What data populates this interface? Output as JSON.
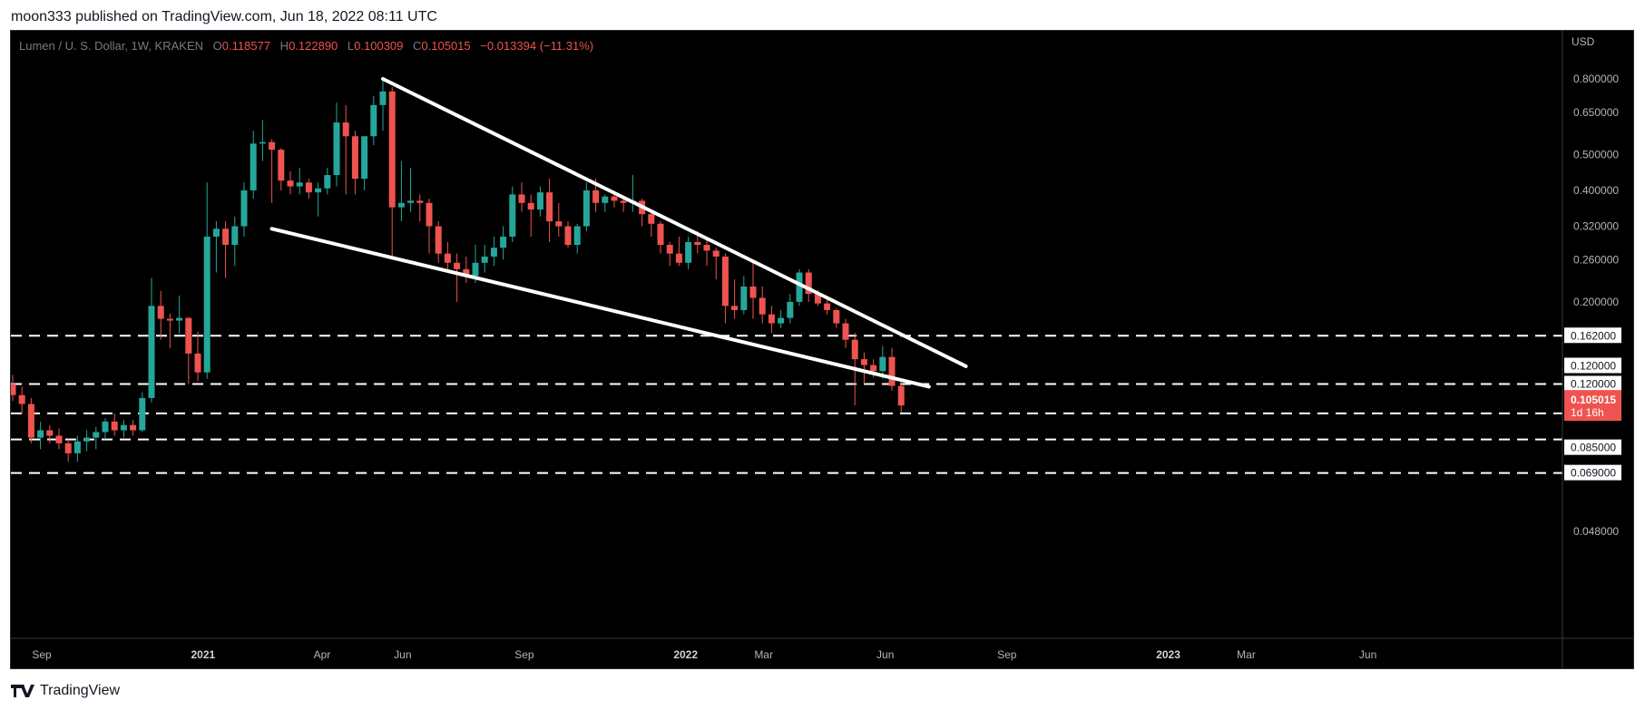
{
  "header": {
    "publish_line": "moon333 published on TradingView.com, Jun 18, 2022 08:11 UTC"
  },
  "footer": {
    "brand": "TradingView",
    "logo_icon": "tradingview-logo-icon"
  },
  "legend": {
    "symbol": "Lumen / U. S. Dollar, 1W, KRAKEN",
    "o_label": "O",
    "o_value": "0.118577",
    "h_label": "H",
    "h_value": "0.122890",
    "l_label": "L",
    "l_value": "0.100309",
    "c_label": "C",
    "c_value": "0.105015",
    "change": "−0.013394 (−11.31%)"
  },
  "colors": {
    "up": "#26a69a",
    "down": "#ef5350",
    "background": "#000000",
    "axis_text": "#b2b5be",
    "legend_value": "#ef5350",
    "drawing": "#ffffff"
  },
  "chart_data": {
    "type": "candlestick",
    "title": "Lumen / U. S. Dollar, 1W, KRAKEN",
    "y_axis": {
      "unit_label": "USD",
      "scale": "log",
      "ticks": [
        "0.800000",
        "0.650000",
        "0.500000",
        "0.400000",
        "0.320000",
        "0.260000",
        "0.200000",
        "0.048000"
      ]
    },
    "x_axis": {
      "ticks": [
        "Sep",
        "2021",
        "Apr",
        "Jun",
        "Sep",
        "2022",
        "Mar",
        "Jun",
        "Sep",
        "2023",
        "Mar",
        "Jun"
      ]
    },
    "candles": [
      {
        "d": "2020-08-10",
        "o": 0.12,
        "h": 0.127,
        "l": 0.108,
        "c": 0.112
      },
      {
        "d": "2020-08-17",
        "o": 0.112,
        "h": 0.118,
        "l": 0.1,
        "c": 0.106
      },
      {
        "d": "2020-08-24",
        "o": 0.106,
        "h": 0.11,
        "l": 0.083,
        "c": 0.086
      },
      {
        "d": "2020-08-31",
        "o": 0.086,
        "h": 0.095,
        "l": 0.08,
        "c": 0.09
      },
      {
        "d": "2020-09-07",
        "o": 0.09,
        "h": 0.093,
        "l": 0.083,
        "c": 0.087
      },
      {
        "d": "2020-09-14",
        "o": 0.087,
        "h": 0.091,
        "l": 0.08,
        "c": 0.083
      },
      {
        "d": "2020-09-21",
        "o": 0.083,
        "h": 0.085,
        "l": 0.074,
        "c": 0.078
      },
      {
        "d": "2020-09-28",
        "o": 0.078,
        "h": 0.087,
        "l": 0.074,
        "c": 0.084
      },
      {
        "d": "2020-10-05",
        "o": 0.084,
        "h": 0.09,
        "l": 0.079,
        "c": 0.086
      },
      {
        "d": "2020-10-12",
        "o": 0.086,
        "h": 0.092,
        "l": 0.08,
        "c": 0.089
      },
      {
        "d": "2020-10-19",
        "o": 0.089,
        "h": 0.097,
        "l": 0.085,
        "c": 0.095
      },
      {
        "d": "2020-10-26",
        "o": 0.095,
        "h": 0.1,
        "l": 0.087,
        "c": 0.09
      },
      {
        "d": "2020-11-02",
        "o": 0.09,
        "h": 0.096,
        "l": 0.086,
        "c": 0.093
      },
      {
        "d": "2020-11-09",
        "o": 0.093,
        "h": 0.096,
        "l": 0.087,
        "c": 0.09
      },
      {
        "d": "2020-11-16",
        "o": 0.09,
        "h": 0.114,
        "l": 0.089,
        "c": 0.11
      },
      {
        "d": "2020-11-23",
        "o": 0.11,
        "h": 0.232,
        "l": 0.107,
        "c": 0.195
      },
      {
        "d": "2020-11-30",
        "o": 0.195,
        "h": 0.214,
        "l": 0.158,
        "c": 0.18
      },
      {
        "d": "2020-12-07",
        "o": 0.18,
        "h": 0.186,
        "l": 0.15,
        "c": 0.178
      },
      {
        "d": "2020-12-14",
        "o": 0.178,
        "h": 0.208,
        "l": 0.164,
        "c": 0.181
      },
      {
        "d": "2020-12-21",
        "o": 0.181,
        "h": 0.182,
        "l": 0.12,
        "c": 0.145
      },
      {
        "d": "2020-12-28",
        "o": 0.145,
        "h": 0.166,
        "l": 0.122,
        "c": 0.129
      },
      {
        "d": "2021-01-04",
        "o": 0.129,
        "h": 0.42,
        "l": 0.124,
        "c": 0.3
      },
      {
        "d": "2021-01-11",
        "o": 0.3,
        "h": 0.33,
        "l": 0.24,
        "c": 0.315
      },
      {
        "d": "2021-01-18",
        "o": 0.315,
        "h": 0.33,
        "l": 0.232,
        "c": 0.285
      },
      {
        "d": "2021-01-25",
        "o": 0.285,
        "h": 0.34,
        "l": 0.25,
        "c": 0.32
      },
      {
        "d": "2021-02-01",
        "o": 0.32,
        "h": 0.42,
        "l": 0.3,
        "c": 0.4
      },
      {
        "d": "2021-02-08",
        "o": 0.4,
        "h": 0.58,
        "l": 0.38,
        "c": 0.535
      },
      {
        "d": "2021-02-15",
        "o": 0.535,
        "h": 0.62,
        "l": 0.48,
        "c": 0.54
      },
      {
        "d": "2021-02-22",
        "o": 0.54,
        "h": 0.55,
        "l": 0.37,
        "c": 0.515
      },
      {
        "d": "2021-03-01",
        "o": 0.515,
        "h": 0.52,
        "l": 0.4,
        "c": 0.425
      },
      {
        "d": "2021-03-08",
        "o": 0.425,
        "h": 0.45,
        "l": 0.39,
        "c": 0.41
      },
      {
        "d": "2021-03-15",
        "o": 0.41,
        "h": 0.46,
        "l": 0.39,
        "c": 0.42
      },
      {
        "d": "2021-03-22",
        "o": 0.42,
        "h": 0.43,
        "l": 0.38,
        "c": 0.395
      },
      {
        "d": "2021-03-29",
        "o": 0.395,
        "h": 0.42,
        "l": 0.34,
        "c": 0.405
      },
      {
        "d": "2021-04-05",
        "o": 0.405,
        "h": 0.46,
        "l": 0.39,
        "c": 0.44
      },
      {
        "d": "2021-04-12",
        "o": 0.44,
        "h": 0.69,
        "l": 0.41,
        "c": 0.61
      },
      {
        "d": "2021-04-19",
        "o": 0.61,
        "h": 0.68,
        "l": 0.39,
        "c": 0.56
      },
      {
        "d": "2021-04-26",
        "o": 0.56,
        "h": 0.58,
        "l": 0.39,
        "c": 0.43
      },
      {
        "d": "2021-05-03",
        "o": 0.43,
        "h": 0.56,
        "l": 0.4,
        "c": 0.56
      },
      {
        "d": "2021-05-10",
        "o": 0.56,
        "h": 0.72,
        "l": 0.53,
        "c": 0.68
      },
      {
        "d": "2021-05-17",
        "o": 0.68,
        "h": 0.8,
        "l": 0.58,
        "c": 0.74
      },
      {
        "d": "2021-05-24",
        "o": 0.74,
        "h": 0.76,
        "l": 0.265,
        "c": 0.36
      },
      {
        "d": "2021-05-31",
        "o": 0.36,
        "h": 0.48,
        "l": 0.33,
        "c": 0.37
      },
      {
        "d": "2021-06-07",
        "o": 0.37,
        "h": 0.46,
        "l": 0.35,
        "c": 0.375
      },
      {
        "d": "2021-06-14",
        "o": 0.375,
        "h": 0.39,
        "l": 0.33,
        "c": 0.37
      },
      {
        "d": "2021-06-21",
        "o": 0.37,
        "h": 0.38,
        "l": 0.27,
        "c": 0.32
      },
      {
        "d": "2021-06-28",
        "o": 0.32,
        "h": 0.33,
        "l": 0.255,
        "c": 0.27
      },
      {
        "d": "2021-07-05",
        "o": 0.27,
        "h": 0.29,
        "l": 0.24,
        "c": 0.255
      },
      {
        "d": "2021-07-12",
        "o": 0.255,
        "h": 0.27,
        "l": 0.2,
        "c": 0.245
      },
      {
        "d": "2021-07-19",
        "o": 0.245,
        "h": 0.265,
        "l": 0.225,
        "c": 0.235
      },
      {
        "d": "2021-07-26",
        "o": 0.235,
        "h": 0.285,
        "l": 0.225,
        "c": 0.255
      },
      {
        "d": "2021-08-02",
        "o": 0.255,
        "h": 0.285,
        "l": 0.24,
        "c": 0.265
      },
      {
        "d": "2021-08-09",
        "o": 0.265,
        "h": 0.3,
        "l": 0.25,
        "c": 0.28
      },
      {
        "d": "2021-08-16",
        "o": 0.28,
        "h": 0.32,
        "l": 0.26,
        "c": 0.3
      },
      {
        "d": "2021-08-23",
        "o": 0.3,
        "h": 0.41,
        "l": 0.29,
        "c": 0.39
      },
      {
        "d": "2021-08-30",
        "o": 0.39,
        "h": 0.42,
        "l": 0.35,
        "c": 0.37
      },
      {
        "d": "2021-09-06",
        "o": 0.37,
        "h": 0.39,
        "l": 0.3,
        "c": 0.355
      },
      {
        "d": "2021-09-13",
        "o": 0.355,
        "h": 0.41,
        "l": 0.34,
        "c": 0.395
      },
      {
        "d": "2021-09-20",
        "o": 0.395,
        "h": 0.43,
        "l": 0.29,
        "c": 0.33
      },
      {
        "d": "2021-09-27",
        "o": 0.33,
        "h": 0.37,
        "l": 0.3,
        "c": 0.32
      },
      {
        "d": "2021-10-04",
        "o": 0.32,
        "h": 0.33,
        "l": 0.28,
        "c": 0.285
      },
      {
        "d": "2021-10-11",
        "o": 0.285,
        "h": 0.325,
        "l": 0.27,
        "c": 0.32
      },
      {
        "d": "2021-10-18",
        "o": 0.32,
        "h": 0.42,
        "l": 0.31,
        "c": 0.4
      },
      {
        "d": "2021-10-25",
        "o": 0.4,
        "h": 0.43,
        "l": 0.35,
        "c": 0.37
      },
      {
        "d": "2021-11-01",
        "o": 0.37,
        "h": 0.39,
        "l": 0.35,
        "c": 0.385
      },
      {
        "d": "2021-11-08",
        "o": 0.385,
        "h": 0.395,
        "l": 0.36,
        "c": 0.375
      },
      {
        "d": "2021-11-15",
        "o": 0.375,
        "h": 0.38,
        "l": 0.35,
        "c": 0.37
      },
      {
        "d": "2021-11-22",
        "o": 0.37,
        "h": 0.44,
        "l": 0.35,
        "c": 0.375
      },
      {
        "d": "2021-11-29",
        "o": 0.375,
        "h": 0.38,
        "l": 0.32,
        "c": 0.345
      },
      {
        "d": "2021-12-06",
        "o": 0.345,
        "h": 0.35,
        "l": 0.3,
        "c": 0.325
      },
      {
        "d": "2021-12-13",
        "o": 0.325,
        "h": 0.33,
        "l": 0.27,
        "c": 0.285
      },
      {
        "d": "2021-12-20",
        "o": 0.285,
        "h": 0.29,
        "l": 0.25,
        "c": 0.27
      },
      {
        "d": "2021-12-27",
        "o": 0.27,
        "h": 0.3,
        "l": 0.25,
        "c": 0.255
      },
      {
        "d": "2022-01-03",
        "o": 0.255,
        "h": 0.3,
        "l": 0.245,
        "c": 0.29
      },
      {
        "d": "2022-01-10",
        "o": 0.29,
        "h": 0.31,
        "l": 0.27,
        "c": 0.285
      },
      {
        "d": "2022-01-17",
        "o": 0.285,
        "h": 0.3,
        "l": 0.25,
        "c": 0.275
      },
      {
        "d": "2022-01-24",
        "o": 0.275,
        "h": 0.28,
        "l": 0.23,
        "c": 0.265
      },
      {
        "d": "2022-01-31",
        "o": 0.265,
        "h": 0.27,
        "l": 0.175,
        "c": 0.195
      },
      {
        "d": "2022-02-07",
        "o": 0.195,
        "h": 0.23,
        "l": 0.18,
        "c": 0.19
      },
      {
        "d": "2022-02-14",
        "o": 0.19,
        "h": 0.235,
        "l": 0.185,
        "c": 0.22
      },
      {
        "d": "2022-02-21",
        "o": 0.22,
        "h": 0.26,
        "l": 0.18,
        "c": 0.205
      },
      {
        "d": "2022-02-28",
        "o": 0.205,
        "h": 0.22,
        "l": 0.175,
        "c": 0.185
      },
      {
        "d": "2022-03-07",
        "o": 0.185,
        "h": 0.195,
        "l": 0.165,
        "c": 0.175
      },
      {
        "d": "2022-03-14",
        "o": 0.175,
        "h": 0.19,
        "l": 0.17,
        "c": 0.181
      },
      {
        "d": "2022-03-21",
        "o": 0.181,
        "h": 0.21,
        "l": 0.175,
        "c": 0.2
      },
      {
        "d": "2022-03-28",
        "o": 0.2,
        "h": 0.245,
        "l": 0.195,
        "c": 0.24
      },
      {
        "d": "2022-04-04",
        "o": 0.24,
        "h": 0.245,
        "l": 0.2,
        "c": 0.21
      },
      {
        "d": "2022-04-11",
        "o": 0.21,
        "h": 0.215,
        "l": 0.195,
        "c": 0.198
      },
      {
        "d": "2022-04-18",
        "o": 0.198,
        "h": 0.205,
        "l": 0.185,
        "c": 0.19
      },
      {
        "d": "2022-04-25",
        "o": 0.19,
        "h": 0.192,
        "l": 0.17,
        "c": 0.175
      },
      {
        "d": "2022-05-02",
        "o": 0.175,
        "h": 0.18,
        "l": 0.15,
        "c": 0.158
      },
      {
        "d": "2022-05-09",
        "o": 0.158,
        "h": 0.165,
        "l": 0.105,
        "c": 0.14
      },
      {
        "d": "2022-05-16",
        "o": 0.14,
        "h": 0.146,
        "l": 0.12,
        "c": 0.135
      },
      {
        "d": "2022-05-23",
        "o": 0.135,
        "h": 0.14,
        "l": 0.125,
        "c": 0.13
      },
      {
        "d": "2022-05-30",
        "o": 0.13,
        "h": 0.152,
        "l": 0.124,
        "c": 0.142
      },
      {
        "d": "2022-06-06",
        "o": 0.142,
        "h": 0.15,
        "l": 0.115,
        "c": 0.1186
      },
      {
        "d": "2022-06-13",
        "o": 0.118577,
        "h": 0.12289,
        "l": 0.100309,
        "c": 0.105015
      }
    ],
    "horizontal_levels": [
      {
        "price": 0.162,
        "label": "0.162000"
      },
      {
        "price": 0.12,
        "label": "0.120000"
      },
      {
        "price": 0.1,
        "label": "0.100000"
      },
      {
        "price": 0.085,
        "label": "0.085000"
      },
      {
        "price": 0.069,
        "label": "0.069000"
      }
    ],
    "extra_label": {
      "label": "0.120000"
    },
    "current_price": {
      "price": 0.105015,
      "label": "0.105015",
      "countdown": "1d 16h"
    },
    "trendlines": [
      {
        "from": {
          "d": "2021-05-17",
          "p": 0.8
        },
        "to": {
          "d": "2022-08-01",
          "p": 0.134
        }
      },
      {
        "from": {
          "d": "2021-02-22",
          "p": 0.315
        },
        "to": {
          "d": "2022-07-04",
          "p": 0.118
        }
      }
    ]
  }
}
